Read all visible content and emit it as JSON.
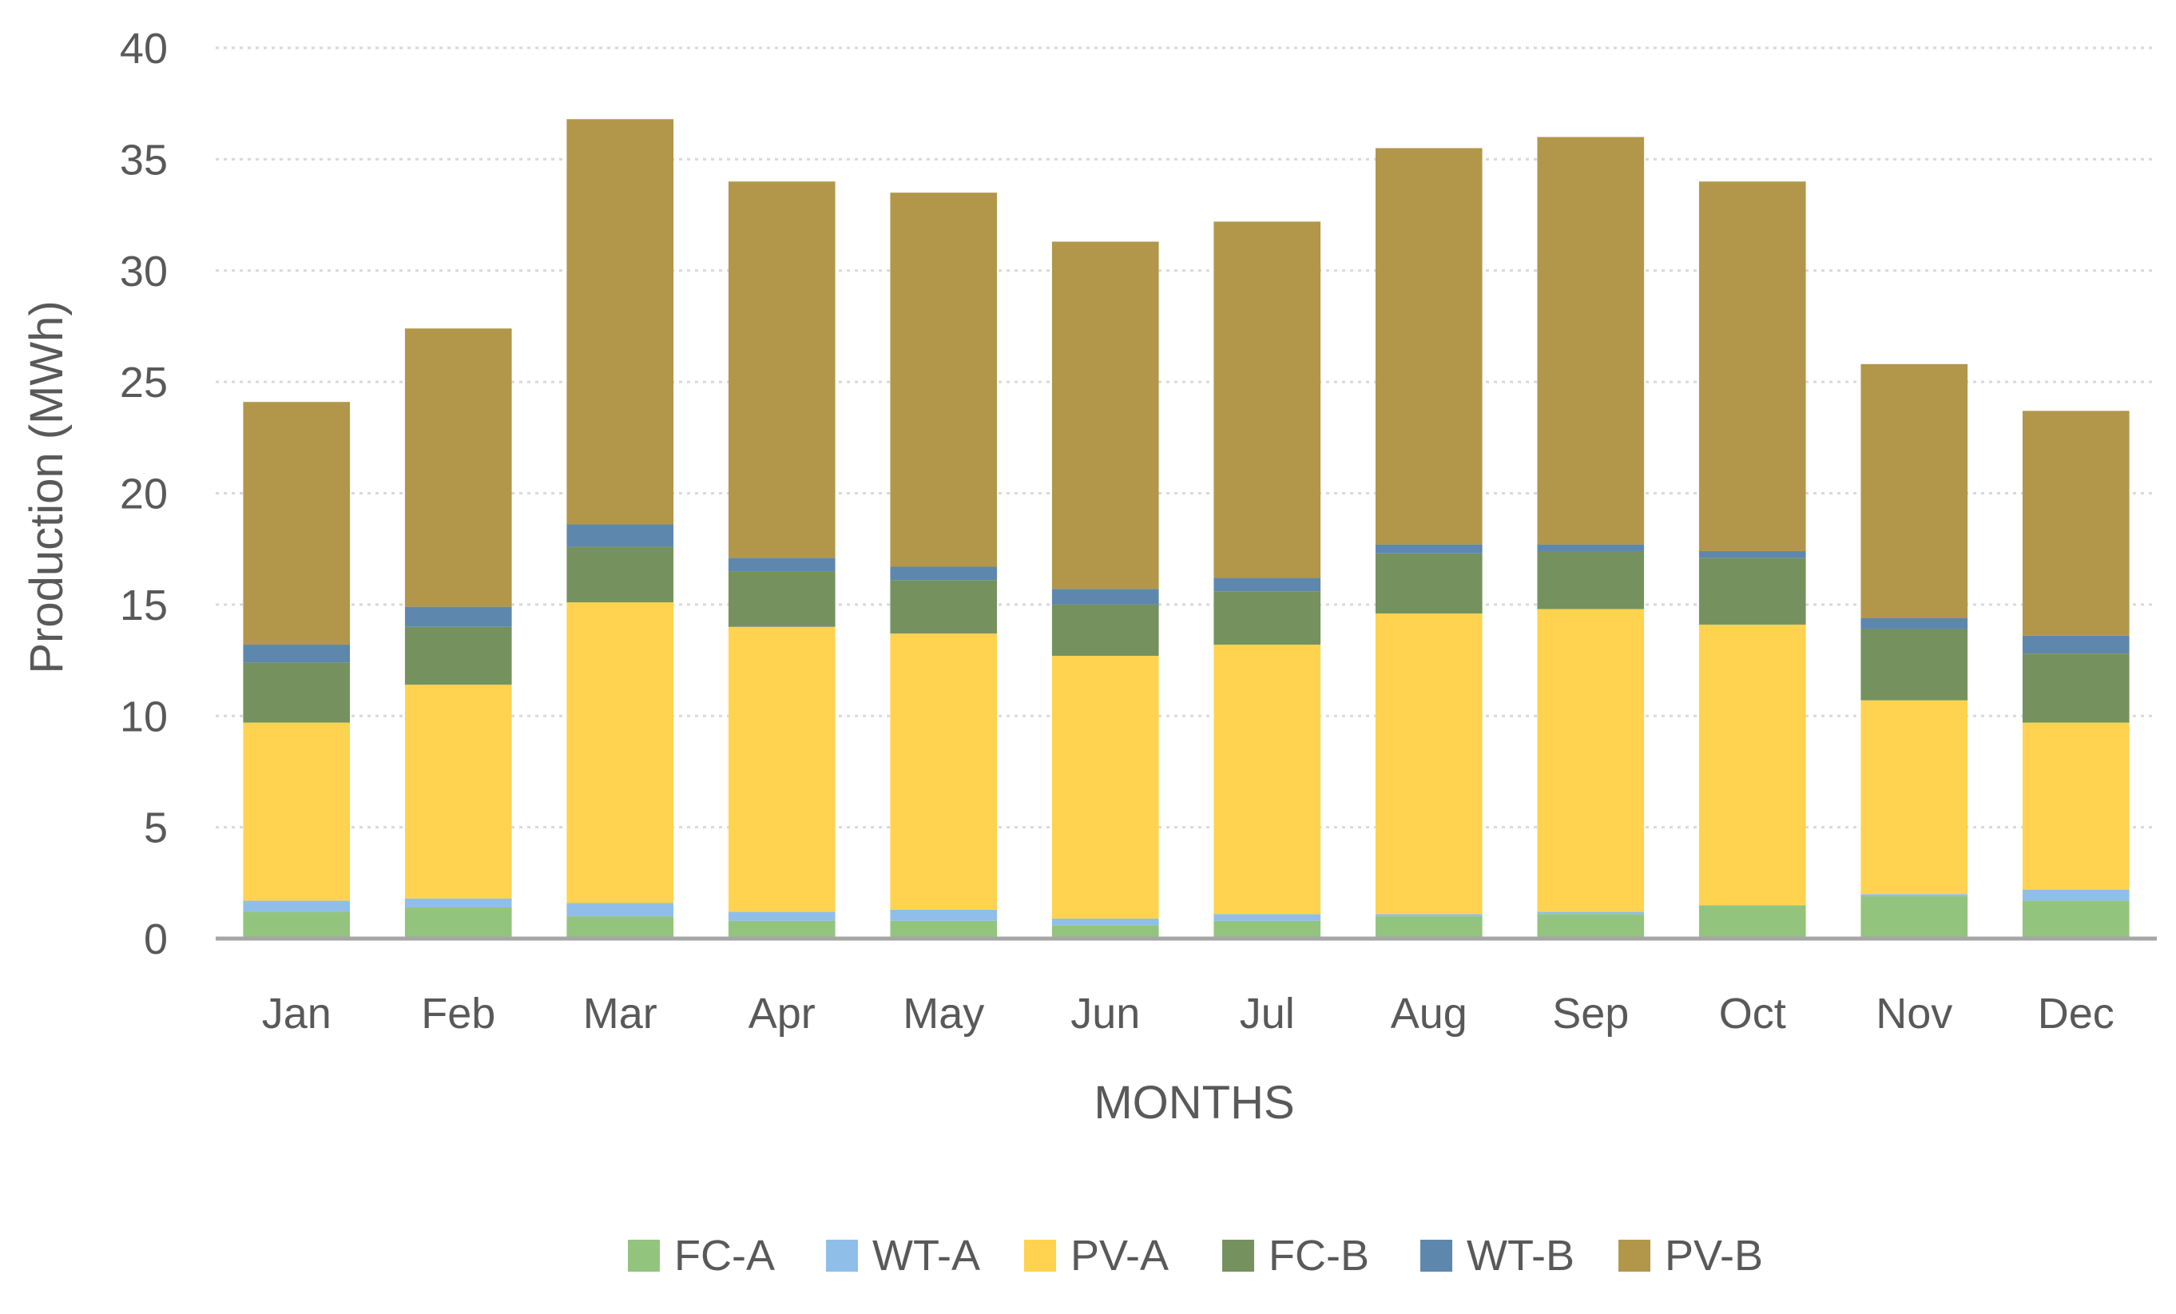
{
  "chart_data": {
    "type": "bar",
    "stacked": true,
    "title": "",
    "xlabel": "MONTHS",
    "ylabel": "Production (MWh)",
    "ylim": [
      0,
      40
    ],
    "yticks": [
      0,
      5,
      10,
      15,
      20,
      25,
      30,
      35,
      40
    ],
    "ytick_labels": [
      "0",
      "5",
      "10",
      "15",
      "20",
      "25",
      "30",
      "35",
      "40"
    ],
    "grid": true,
    "legend_position": "bottom",
    "categories": [
      "Jan",
      "Feb",
      "Mar",
      "Apr",
      "May",
      "Jun",
      "Jul",
      "Aug",
      "Sep",
      "Oct",
      "Nov",
      "Dec"
    ],
    "series": [
      {
        "name": "FC-A",
        "color": "#93c47d",
        "values": [
          1.2,
          1.4,
          1.0,
          0.8,
          0.8,
          0.6,
          0.8,
          1.0,
          1.1,
          1.5,
          1.9,
          1.7
        ]
      },
      {
        "name": "WT-A",
        "color": "#8fbfe8",
        "values": [
          0.5,
          0.4,
          0.6,
          0.4,
          0.5,
          0.3,
          0.3,
          0.1,
          0.1,
          0.0,
          0.1,
          0.5
        ]
      },
      {
        "name": "PV-A",
        "color": "#ffd34f",
        "values": [
          8.0,
          9.6,
          13.5,
          12.8,
          12.4,
          11.8,
          12.1,
          13.5,
          13.6,
          12.6,
          8.7,
          7.5
        ]
      },
      {
        "name": "FC-B",
        "color": "#75925e",
        "values": [
          2.7,
          2.6,
          2.5,
          2.5,
          2.4,
          2.3,
          2.4,
          2.7,
          2.6,
          3.0,
          3.2,
          3.1
        ]
      },
      {
        "name": "WT-B",
        "color": "#5e87ad",
        "values": [
          0.8,
          0.9,
          1.0,
          0.6,
          0.6,
          0.7,
          0.6,
          0.4,
          0.3,
          0.3,
          0.5,
          0.8
        ]
      },
      {
        "name": "PV-B",
        "color": "#b2974a",
        "values": [
          10.9,
          12.5,
          18.2,
          16.9,
          16.8,
          15.6,
          16.0,
          17.8,
          18.3,
          16.6,
          11.4,
          10.1
        ]
      }
    ]
  }
}
